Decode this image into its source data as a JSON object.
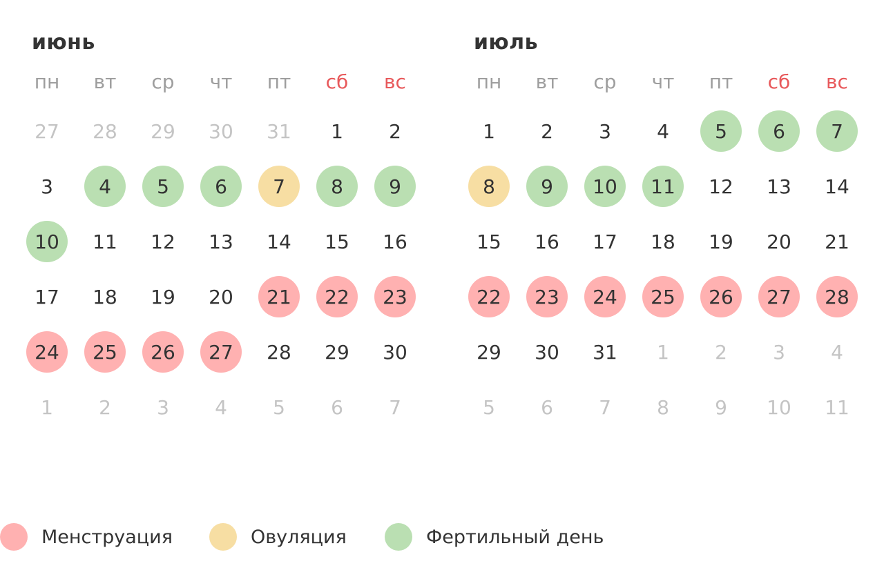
{
  "colors": {
    "menstruation": "#ffb1b1",
    "ovulation": "#f7dea3",
    "fertile": "#badfb2",
    "weekend_label": "#e8595b",
    "weekday_label": "#9e9e9e",
    "muted_day": "#c4c4c4",
    "text": "#333333"
  },
  "calendar": {
    "weekdays": [
      "пн",
      "вт",
      "ср",
      "чт",
      "пт",
      "сб",
      "вс"
    ],
    "months": [
      {
        "key": "june",
        "title": "июнь",
        "weeks": [
          [
            {
              "d": "27",
              "s": "muted"
            },
            {
              "d": "28",
              "s": "muted"
            },
            {
              "d": "29",
              "s": "muted"
            },
            {
              "d": "30",
              "s": "muted"
            },
            {
              "d": "31",
              "s": "muted"
            },
            {
              "d": "1",
              "s": ""
            },
            {
              "d": "2",
              "s": ""
            }
          ],
          [
            {
              "d": "3",
              "s": ""
            },
            {
              "d": "4",
              "s": "fertile"
            },
            {
              "d": "5",
              "s": "fertile"
            },
            {
              "d": "6",
              "s": "fertile"
            },
            {
              "d": "7",
              "s": "ovulation"
            },
            {
              "d": "8",
              "s": "fertile"
            },
            {
              "d": "9",
              "s": "fertile"
            }
          ],
          [
            {
              "d": "10",
              "s": "fertile"
            },
            {
              "d": "11",
              "s": ""
            },
            {
              "d": "12",
              "s": ""
            },
            {
              "d": "13",
              "s": ""
            },
            {
              "d": "14",
              "s": ""
            },
            {
              "d": "15",
              "s": ""
            },
            {
              "d": "16",
              "s": ""
            }
          ],
          [
            {
              "d": "17",
              "s": ""
            },
            {
              "d": "18",
              "s": ""
            },
            {
              "d": "19",
              "s": ""
            },
            {
              "d": "20",
              "s": ""
            },
            {
              "d": "21",
              "s": "menstruation"
            },
            {
              "d": "22",
              "s": "menstruation"
            },
            {
              "d": "23",
              "s": "menstruation"
            }
          ],
          [
            {
              "d": "24",
              "s": "menstruation"
            },
            {
              "d": "25",
              "s": "menstruation"
            },
            {
              "d": "26",
              "s": "menstruation"
            },
            {
              "d": "27",
              "s": "menstruation"
            },
            {
              "d": "28",
              "s": ""
            },
            {
              "d": "29",
              "s": ""
            },
            {
              "d": "30",
              "s": ""
            }
          ],
          [
            {
              "d": "1",
              "s": "muted"
            },
            {
              "d": "2",
              "s": "muted"
            },
            {
              "d": "3",
              "s": "muted"
            },
            {
              "d": "4",
              "s": "muted"
            },
            {
              "d": "5",
              "s": "muted"
            },
            {
              "d": "6",
              "s": "muted"
            },
            {
              "d": "7",
              "s": "muted"
            }
          ]
        ]
      },
      {
        "key": "july",
        "title": "июль",
        "weeks": [
          [
            {
              "d": "1",
              "s": ""
            },
            {
              "d": "2",
              "s": ""
            },
            {
              "d": "3",
              "s": ""
            },
            {
              "d": "4",
              "s": ""
            },
            {
              "d": "5",
              "s": "fertile"
            },
            {
              "d": "6",
              "s": "fertile"
            },
            {
              "d": "7",
              "s": "fertile"
            }
          ],
          [
            {
              "d": "8",
              "s": "ovulation"
            },
            {
              "d": "9",
              "s": "fertile"
            },
            {
              "d": "10",
              "s": "fertile"
            },
            {
              "d": "11",
              "s": "fertile"
            },
            {
              "d": "12",
              "s": ""
            },
            {
              "d": "13",
              "s": ""
            },
            {
              "d": "14",
              "s": ""
            }
          ],
          [
            {
              "d": "15",
              "s": ""
            },
            {
              "d": "16",
              "s": ""
            },
            {
              "d": "17",
              "s": ""
            },
            {
              "d": "18",
              "s": ""
            },
            {
              "d": "19",
              "s": ""
            },
            {
              "d": "20",
              "s": ""
            },
            {
              "d": "21",
              "s": ""
            }
          ],
          [
            {
              "d": "22",
              "s": "menstruation"
            },
            {
              "d": "23",
              "s": "menstruation"
            },
            {
              "d": "24",
              "s": "menstruation"
            },
            {
              "d": "25",
              "s": "menstruation"
            },
            {
              "d": "26",
              "s": "menstruation"
            },
            {
              "d": "27",
              "s": "menstruation"
            },
            {
              "d": "28",
              "s": "menstruation"
            }
          ],
          [
            {
              "d": "29",
              "s": ""
            },
            {
              "d": "30",
              "s": ""
            },
            {
              "d": "31",
              "s": ""
            },
            {
              "d": "1",
              "s": "muted"
            },
            {
              "d": "2",
              "s": "muted"
            },
            {
              "d": "3",
              "s": "muted"
            },
            {
              "d": "4",
              "s": "muted"
            }
          ],
          [
            {
              "d": "5",
              "s": "muted"
            },
            {
              "d": "6",
              "s": "muted"
            },
            {
              "d": "7",
              "s": "muted"
            },
            {
              "d": "8",
              "s": "muted"
            },
            {
              "d": "9",
              "s": "muted"
            },
            {
              "d": "10",
              "s": "muted"
            },
            {
              "d": "11",
              "s": "muted"
            }
          ]
        ]
      }
    ]
  },
  "legend": {
    "items": [
      {
        "key": "menstruation",
        "label": "Менструация"
      },
      {
        "key": "ovulation",
        "label": "Овуляция"
      },
      {
        "key": "fertile",
        "label": "Фертильный день"
      }
    ]
  }
}
